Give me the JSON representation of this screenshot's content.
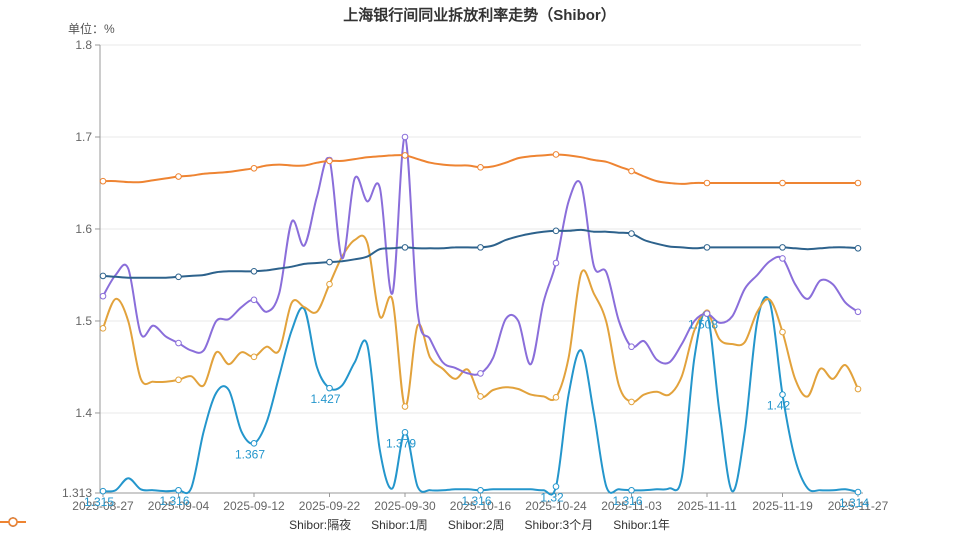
{
  "title": "上海银行间同业拆放利率走势（Shibor）",
  "unit_label": "单位：%",
  "colors": {
    "overnight": "#2496CC",
    "one_week": "#E2A23C",
    "two_week": "#8A6EDA",
    "three_month": "#2D628C",
    "one_year": "#EE8432",
    "grid": "#E8E8E8",
    "axis": "#999999",
    "tick_text": "#666666",
    "title_text": "#333333"
  },
  "chart_data": {
    "type": "line",
    "title": "上海银行间同业拆放利率走势（Shibor）",
    "ylabel": "单位：%",
    "ylim": [
      1.313,
      1.8
    ],
    "y_ticks": [
      1.8,
      1.7,
      1.6,
      1.5,
      1.4,
      1.313
    ],
    "grid": true,
    "legend_position": "bottom",
    "x_tick_labels": [
      "2025-08-27",
      "2025-09-04",
      "2025-09-12",
      "2025-09-22",
      "2025-09-30",
      "2025-10-16",
      "2025-10-24",
      "2025-11-03",
      "2025-11-11",
      "2025-11-19",
      "2025-11-27"
    ],
    "tick_every": 6,
    "series": [
      {
        "name": "Shibor:隔夜",
        "color": "#2496CC",
        "point_labels": [
          "1.315",
          "1.316",
          "1.367",
          "1.427",
          "1.379",
          "1.316",
          "1.32",
          "1.316",
          "1.508",
          "1.42",
          "1.314"
        ],
        "values": [
          1.315,
          1.316,
          1.329,
          1.317,
          1.316,
          1.315,
          1.316,
          1.318,
          1.38,
          1.422,
          1.425,
          1.38,
          1.367,
          1.39,
          1.44,
          1.49,
          1.513,
          1.45,
          1.427,
          1.43,
          1.455,
          1.474,
          1.36,
          1.318,
          1.379,
          1.32,
          1.316,
          1.316,
          1.317,
          1.317,
          1.316,
          1.317,
          1.317,
          1.317,
          1.317,
          1.316,
          1.32,
          1.42,
          1.468,
          1.4,
          1.32,
          1.317,
          1.316,
          1.316,
          1.317,
          1.318,
          1.33,
          1.46,
          1.508,
          1.4,
          1.315,
          1.38,
          1.5,
          1.52,
          1.42,
          1.35,
          1.318,
          1.316,
          1.316,
          1.317,
          1.314
        ]
      },
      {
        "name": "Shibor:1周",
        "color": "#E2A23C",
        "point_labels": [],
        "values": [
          1.492,
          1.524,
          1.5,
          1.437,
          1.434,
          1.434,
          1.436,
          1.44,
          1.43,
          1.466,
          1.453,
          1.466,
          1.461,
          1.472,
          1.468,
          1.52,
          1.515,
          1.51,
          1.54,
          1.57,
          1.588,
          1.585,
          1.505,
          1.523,
          1.407,
          1.495,
          1.46,
          1.448,
          1.437,
          1.447,
          1.418,
          1.425,
          1.428,
          1.426,
          1.42,
          1.418,
          1.417,
          1.46,
          1.552,
          1.53,
          1.499,
          1.43,
          1.412,
          1.42,
          1.423,
          1.42,
          1.44,
          1.49,
          1.509,
          1.48,
          1.475,
          1.477,
          1.51,
          1.523,
          1.488,
          1.437,
          1.418,
          1.448,
          1.437,
          1.452,
          1.426
        ]
      },
      {
        "name": "Shibor:2周",
        "color": "#8A6EDA",
        "point_labels": [],
        "values": [
          1.527,
          1.55,
          1.557,
          1.486,
          1.495,
          1.483,
          1.476,
          1.468,
          1.468,
          1.5,
          1.502,
          1.515,
          1.523,
          1.51,
          1.53,
          1.608,
          1.582,
          1.635,
          1.675,
          1.568,
          1.655,
          1.63,
          1.645,
          1.53,
          1.7,
          1.51,
          1.48,
          1.455,
          1.449,
          1.443,
          1.443,
          1.46,
          1.502,
          1.5,
          1.453,
          1.52,
          1.563,
          1.63,
          1.648,
          1.56,
          1.553,
          1.5,
          1.472,
          1.478,
          1.458,
          1.455,
          1.475,
          1.5,
          1.508,
          1.498,
          1.505,
          1.535,
          1.55,
          1.565,
          1.568,
          1.54,
          1.524,
          1.544,
          1.54,
          1.52,
          1.51
        ]
      },
      {
        "name": "Shibor:3个月",
        "color": "#2D628C",
        "point_labels": [],
        "values": [
          1.549,
          1.548,
          1.547,
          1.547,
          1.547,
          1.547,
          1.548,
          1.549,
          1.55,
          1.553,
          1.554,
          1.554,
          1.554,
          1.555,
          1.557,
          1.559,
          1.562,
          1.563,
          1.564,
          1.565,
          1.567,
          1.57,
          1.578,
          1.579,
          1.58,
          1.579,
          1.579,
          1.579,
          1.58,
          1.58,
          1.58,
          1.582,
          1.588,
          1.592,
          1.595,
          1.597,
          1.598,
          1.598,
          1.599,
          1.597,
          1.597,
          1.596,
          1.595,
          1.588,
          1.584,
          1.581,
          1.58,
          1.579,
          1.58,
          1.58,
          1.58,
          1.58,
          1.58,
          1.58,
          1.58,
          1.579,
          1.578,
          1.579,
          1.58,
          1.58,
          1.579
        ]
      },
      {
        "name": "Shibor:1年",
        "color": "#EE8432",
        "point_labels": [],
        "values": [
          1.652,
          1.652,
          1.651,
          1.651,
          1.653,
          1.655,
          1.657,
          1.658,
          1.66,
          1.661,
          1.662,
          1.664,
          1.666,
          1.669,
          1.67,
          1.669,
          1.669,
          1.672,
          1.674,
          1.674,
          1.676,
          1.678,
          1.679,
          1.68,
          1.68,
          1.676,
          1.672,
          1.67,
          1.669,
          1.669,
          1.667,
          1.668,
          1.672,
          1.677,
          1.679,
          1.68,
          1.681,
          1.68,
          1.678,
          1.675,
          1.673,
          1.668,
          1.663,
          1.657,
          1.652,
          1.65,
          1.649,
          1.65,
          1.65,
          1.65,
          1.65,
          1.65,
          1.65,
          1.65,
          1.65,
          1.65,
          1.65,
          1.65,
          1.65,
          1.65,
          1.65
        ]
      }
    ]
  },
  "legend": {
    "items": [
      {
        "label": "Shibor:隔夜",
        "color": "#2496CC"
      },
      {
        "label": "Shibor:1周",
        "color": "#E2A23C"
      },
      {
        "label": "Shibor:2周",
        "color": "#8A6EDA"
      },
      {
        "label": "Shibor:3个月",
        "color": "#2D628C"
      },
      {
        "label": "Shibor:1年",
        "color": "#EE8432"
      }
    ]
  }
}
